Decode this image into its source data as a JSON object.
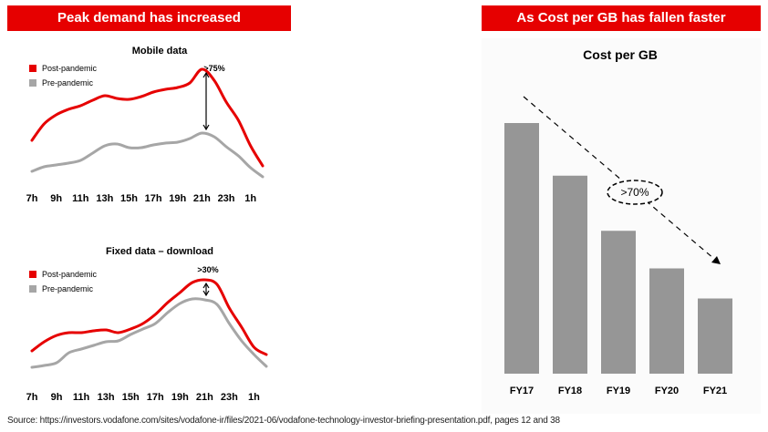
{
  "left_banner": "Peak demand has increased",
  "right_banner": "As Cost per GB has fallen faster",
  "colors": {
    "red": "#e60000",
    "grey": "#a6a6a6",
    "bar": "#969696"
  },
  "chart_data": [
    {
      "type": "line",
      "title": "Mobile data",
      "tick_labels": [
        "7h",
        "9h",
        "11h",
        "13h",
        "15h",
        "17h",
        "19h",
        "21h",
        "23h",
        "1h"
      ],
      "x": [
        7,
        8,
        9,
        10,
        11,
        12,
        13,
        14,
        15,
        16,
        17,
        18,
        19,
        20,
        21,
        22,
        23,
        24,
        25,
        26
      ],
      "series": [
        {
          "name": "Post-pandemic",
          "values": [
            42,
            60,
            70,
            76,
            80,
            86,
            91,
            88,
            87,
            90,
            95,
            98,
            100,
            105,
            120,
            108,
            84,
            64,
            36,
            14
          ]
        },
        {
          "name": "Pre-pandemic",
          "values": [
            8,
            13,
            15,
            17,
            20,
            28,
            36,
            38,
            34,
            34,
            37,
            39,
            40,
            44,
            50,
            46,
            35,
            25,
            12,
            2
          ]
        }
      ],
      "annotation": ">75%",
      "legend": [
        "Post-pandemic",
        "Pre-pandemic"
      ],
      "ylim": [
        0,
        130
      ]
    },
    {
      "type": "line",
      "title": "Fixed data – download",
      "tick_labels": [
        "7h",
        "9h",
        "11h",
        "13h",
        "15h",
        "17h",
        "19h",
        "21h",
        "23h",
        "1h"
      ],
      "x": [
        7,
        8,
        9,
        10,
        11,
        12,
        13,
        14,
        15,
        16,
        17,
        18,
        19,
        20,
        21,
        22,
        23,
        24,
        25,
        26
      ],
      "series": [
        {
          "name": "Post-pandemic",
          "values": [
            20,
            30,
            37,
            40,
            40,
            42,
            43,
            40,
            44,
            50,
            60,
            73,
            84,
            95,
            98,
            93,
            67,
            46,
            24,
            16
          ]
        },
        {
          "name": "Pre-pandemic",
          "values": [
            2,
            4,
            7,
            18,
            22,
            26,
            30,
            31,
            38,
            44,
            50,
            62,
            72,
            77,
            76,
            71,
            50,
            31,
            16,
            3
          ]
        }
      ],
      "annotation": ">30%",
      "legend": [
        "Post-pandemic",
        "Pre-pandemic"
      ],
      "ylim": [
        0,
        110
      ]
    },
    {
      "type": "bar",
      "title": "Cost per GB",
      "categories": [
        "FY17",
        "FY18",
        "FY19",
        "FY20",
        "FY21"
      ],
      "values": [
        100,
        79,
        57,
        42,
        30
      ],
      "annotation": ">70%",
      "ylim": [
        0,
        100
      ]
    }
  ],
  "source": "Source: https://investors.vodafone.com/sites/vodafone-ir/files/2021-06/vodafone-technology-investor-briefing-presentation.pdf, pages 12 and 38"
}
